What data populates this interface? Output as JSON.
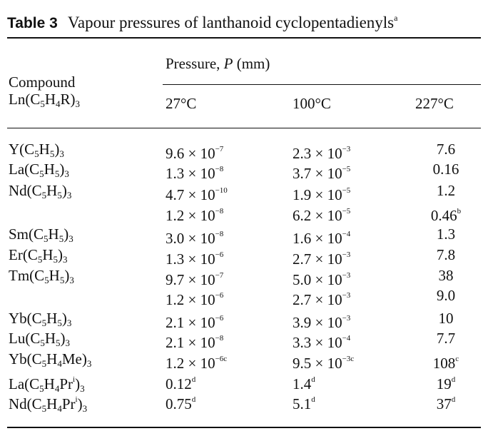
{
  "table": {
    "label": "Table 3",
    "title": "Vapour pressures of lanthanoid cyclopentadienyls",
    "footnote_marker": "a",
    "headers": {
      "compound_line1": "Compound",
      "compound_line2": "Ln(C5H4R)3",
      "pressure": "Pressure, P (mm)",
      "t27": "27°C",
      "t100": "100°C",
      "t227": "227°C"
    },
    "rows": [
      {
        "compound": "Y(C5H5)3",
        "p27": "9.6 × 10−7",
        "p100": "2.3 × 10−3",
        "p227": "7.6"
      },
      {
        "compound": "La(C5H5)3",
        "p27": "1.3 × 10−8",
        "p100": "3.7 × 10−5",
        "p227": "0.16"
      },
      {
        "compound": "Nd(C5H5)3",
        "p27": "4.7 × 10−10",
        "p100": "1.9 × 10−5",
        "p227": "1.2"
      },
      {
        "compound": "",
        "p27": "1.2 × 10−8",
        "p100": "6.2 × 10−5",
        "p227": "0.46b"
      },
      {
        "compound": "Sm(C5H5)3",
        "p27": "3.0 × 10−8",
        "p100": "1.6 × 10−4",
        "p227": "1.3"
      },
      {
        "compound": "Er(C5H5)3",
        "p27": "1.3 × 10−6",
        "p100": "2.7 × 10−3",
        "p227": "7.8"
      },
      {
        "compound": "Tm(C5H5)3",
        "p27": "9.7 × 10−7",
        "p100": "5.0 × 10−3",
        "p227": "38"
      },
      {
        "compound": "",
        "p27": "1.2 × 10−6",
        "p100": "2.7 × 10−3",
        "p227": "9.0"
      },
      {
        "compound": "Yb(C5H5)3",
        "p27": "2.1 × 10−6",
        "p100": "3.9 × 10−3",
        "p227": "10"
      },
      {
        "compound": "Lu(C5H5)3",
        "p27": "2.1 × 10−8",
        "p100": "3.3 × 10−4",
        "p227": "7.7"
      },
      {
        "compound": "Yb(C5H4Me)3",
        "p27": "1.2 × 10−6c",
        "p100": "9.5 × 10−3c",
        "p227": "108c"
      },
      {
        "compound": "La(C5H4Pri)3",
        "p27": "0.12d",
        "p100": "1.4d",
        "p227": "19d"
      },
      {
        "compound": "Nd(C5H4Pri)3",
        "p27": "0.75d",
        "p100": "5.1d",
        "p227": "37d"
      }
    ]
  }
}
